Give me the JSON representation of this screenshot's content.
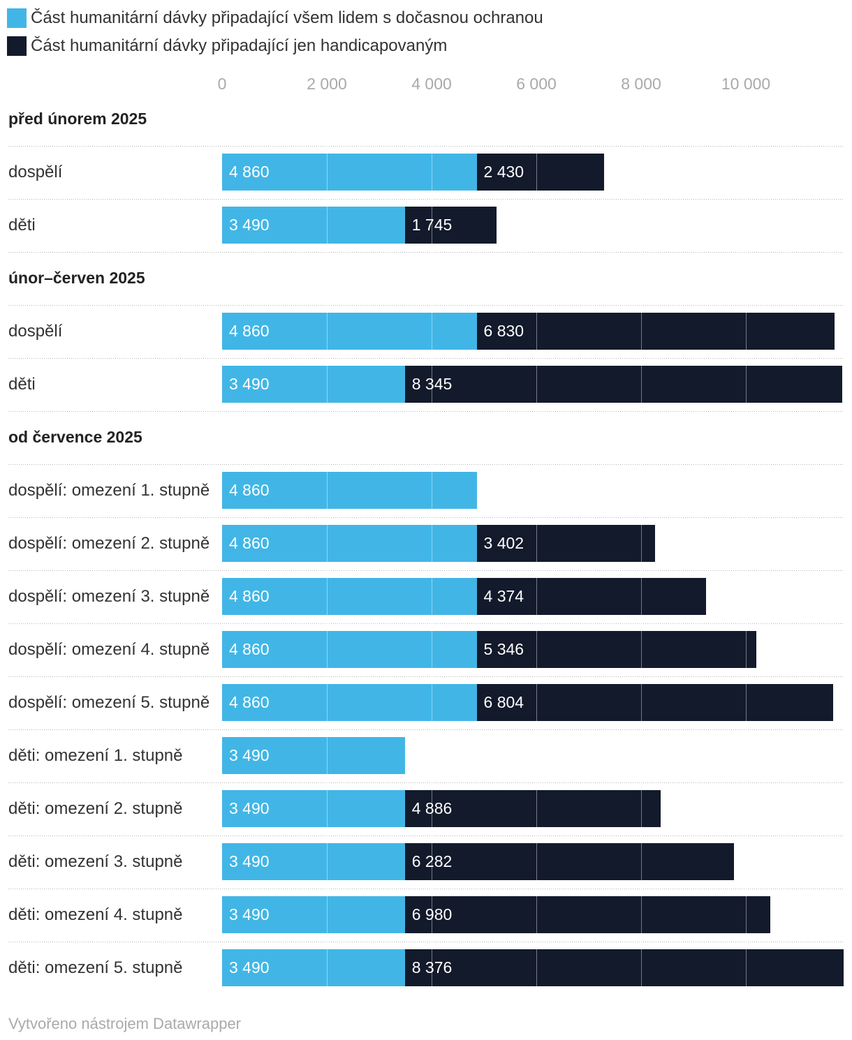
{
  "chart_data": {
    "type": "bar",
    "orientation": "horizontal",
    "stacked": true,
    "legend_position": "top-left",
    "grid": true,
    "xlim": [
      0,
      11866
    ],
    "xticks": [
      0,
      2000,
      4000,
      6000,
      8000,
      10000
    ],
    "xtick_labels": [
      "0",
      "2 000",
      "4 000",
      "6 000",
      "8 000",
      "10 000"
    ],
    "groups": [
      {
        "title": "před únorem 2025",
        "categories": [
          "dospělí",
          "děti"
        ]
      },
      {
        "title": "únor–červen 2025",
        "categories": [
          "dospělí",
          "děti"
        ]
      },
      {
        "title": "od července 2025",
        "categories": [
          "dospělí: omezení 1. stupně",
          "dospělí: omezení 2. stupně",
          "dospělí: omezení 3. stupně",
          "dospělí: omezení 4. stupně",
          "dospělí: omezení 5. stupně",
          "děti: omezení 1. stupně",
          "děti: omezení 2. stupně",
          "děti: omezení 3. stupně",
          "děti: omezení 4. stupně",
          "děti: omezení 5. stupně"
        ]
      }
    ],
    "series": [
      {
        "name": "Část humanitární dávky připadající všem lidem s dočasnou ochranou",
        "color": "#41b6e6",
        "values": [
          4860,
          3490,
          4860,
          3490,
          4860,
          4860,
          4860,
          4860,
          4860,
          3490,
          3490,
          3490,
          3490,
          3490
        ],
        "value_labels": [
          "4 860",
          "3 490",
          "4 860",
          "3 490",
          "4 860",
          "4 860",
          "4 860",
          "4 860",
          "4 860",
          "3 490",
          "3 490",
          "3 490",
          "3 490",
          "3 490"
        ]
      },
      {
        "name": "Část humanitární dávky připadající jen handicapovaným",
        "color": "#131a2b",
        "values": [
          2430,
          1745,
          6830,
          8345,
          null,
          3402,
          4374,
          5346,
          6804,
          null,
          4886,
          6282,
          6980,
          8376
        ],
        "value_labels": [
          "2 430",
          "1 745",
          "6 830",
          "8 345",
          null,
          "3 402",
          "4 374",
          "5 346",
          "6 804",
          null,
          "4 886",
          "6 282",
          "6 980",
          "8 376"
        ]
      }
    ]
  },
  "footer": {
    "credit": "Vytvořeno nástrojem Datawrapper"
  }
}
